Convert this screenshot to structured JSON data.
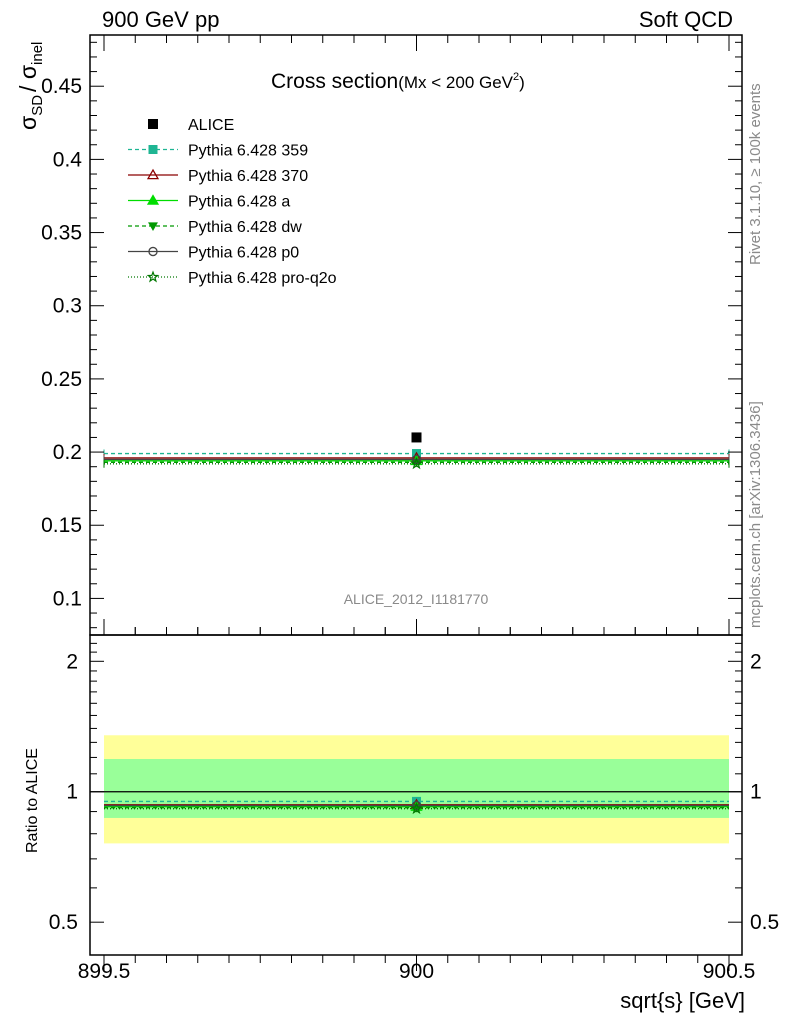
{
  "header": {
    "left": "900 GeV pp",
    "right": "Soft QCD"
  },
  "side_text": {
    "rivet": "Rivet 3.1.10, ≥ 100k events",
    "mcplots": "mcplots.cern.ch [arXiv:1306.3436]"
  },
  "chart_data": [
    {
      "type": "line",
      "title": "Cross section",
      "subtitle": "(Mx < 200 GeV",
      "subtitle_sup": "2",
      "subtitle_end": ")",
      "ylabel": "σ",
      "ylabel_sub1": "SD",
      "ylabel_mid": "/ σ",
      "ylabel_sub2": "inel",
      "analysis_label": "ALICE_2012_I1181770",
      "xlim": [
        899.5,
        900.5
      ],
      "ylim": [
        0.075,
        0.485
      ],
      "y_ticks": [
        "0.1",
        "0.15",
        "0.2",
        "0.25",
        "0.3",
        "0.35",
        "0.4",
        "0.45"
      ],
      "legend_position": "top-left",
      "data": {
        "name": "ALICE",
        "x": 900,
        "y": 0.21,
        "color": "#000000",
        "marker": "square"
      },
      "series": [
        {
          "name": "Pythia 6.428 359",
          "x": [
            899.5,
            900.5
          ],
          "y": [
            0.199,
            0.199
          ],
          "color": "#1fb593",
          "dash": "4,3",
          "marker": "square"
        },
        {
          "name": "Pythia 6.428 370",
          "x": [
            899.5,
            900.5
          ],
          "y": [
            0.196,
            0.196
          ],
          "color": "#8b0000",
          "dash": "",
          "marker": "triangle-open"
        },
        {
          "name": "Pythia 6.428 a",
          "x": [
            899.5,
            900.5
          ],
          "y": [
            0.194,
            0.194
          ],
          "color": "#00dd00",
          "dash": "",
          "marker": "triangle"
        },
        {
          "name": "Pythia 6.428 dw",
          "x": [
            899.5,
            900.5
          ],
          "y": [
            0.193,
            0.193
          ],
          "color": "#009900",
          "dash": "4,3",
          "marker": "triangle-down"
        },
        {
          "name": "Pythia 6.428 p0",
          "x": [
            899.5,
            900.5
          ],
          "y": [
            0.195,
            0.195
          ],
          "color": "#444444",
          "dash": "",
          "marker": "circle-open"
        },
        {
          "name": "Pythia 6.428 pro-q2o",
          "x": [
            899.5,
            900.5
          ],
          "y": [
            0.192,
            0.192
          ],
          "color": "#007700",
          "dash": "1,2",
          "marker": "star"
        }
      ]
    },
    {
      "type": "line",
      "ylabel": "Ratio to ALICE",
      "xlabel": "sqrt{s} [GeV]",
      "ylim": [
        0.42,
        2.3
      ],
      "y_ticks": [
        "0.5",
        "1",
        "2"
      ],
      "x_ticks": [
        "899.5",
        "900",
        "900.5"
      ],
      "bands": [
        {
          "low": 0.76,
          "high": 1.35,
          "color": "#ffff99"
        },
        {
          "low": 0.87,
          "high": 1.19,
          "color": "#99ff99"
        }
      ],
      "series": [
        {
          "name": "Pythia 6.428 359",
          "values": [
            0.95
          ],
          "color": "#1fb593",
          "dash": "4,3"
        },
        {
          "name": "Pythia 6.428 370",
          "values": [
            0.933
          ],
          "color": "#8b0000",
          "dash": ""
        },
        {
          "name": "Pythia 6.428 a",
          "values": [
            0.924
          ],
          "color": "#00dd00",
          "dash": ""
        },
        {
          "name": "Pythia 6.428 dw",
          "values": [
            0.919
          ],
          "color": "#009900",
          "dash": "4,3"
        },
        {
          "name": "Pythia 6.428 p0",
          "values": [
            0.929
          ],
          "color": "#444444",
          "dash": ""
        },
        {
          "name": "Pythia 6.428 pro-q2o",
          "values": [
            0.914
          ],
          "color": "#007700",
          "dash": "1,2"
        }
      ]
    }
  ]
}
